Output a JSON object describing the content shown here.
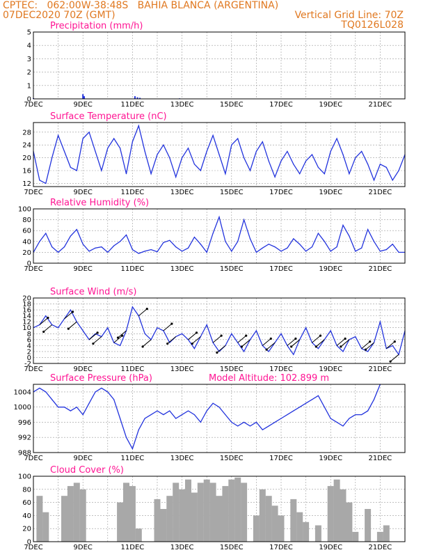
{
  "header": {
    "line1_left": "CPTEC:   062:00W-38:48S   BAHIA BLANCA (ARGENTINA)",
    "line2_left": "07DEC2020 70Z (GMT)",
    "line2_right": "Vertical Grid Line: 70Z",
    "line3_right": "TQ0126L028"
  },
  "x_tick_labels": [
    "7DEC",
    "9DEC",
    "11DEC",
    "13DEC",
    "15DEC",
    "17DEC",
    "19DEC",
    "21DEC"
  ],
  "colors": {
    "line": "#2233dd",
    "title": "#ff1493",
    "header": "#e07820",
    "bars": "#a8a8a8",
    "arrows": "#000000"
  },
  "chart_data": [
    {
      "type": "bar",
      "title": "Precipitation (mm/h)",
      "ylim": [
        0,
        5
      ],
      "yticks": [
        0,
        1,
        2,
        3,
        4,
        5
      ],
      "x_days": [
        0,
        2.0,
        2.05,
        4.1,
        4.2,
        4.3,
        5.9
      ],
      "values": [
        0.05,
        0.35,
        0.2,
        0.2,
        0.12,
        0.08,
        0.04
      ]
    },
    {
      "type": "line",
      "title": "Surface Temperature (nC)",
      "ylim": [
        11,
        31
      ],
      "yticks": [
        12,
        16,
        20,
        24,
        28
      ],
      "x_days": [
        0,
        0.25,
        0.5,
        0.75,
        1.0,
        1.25,
        1.5,
        1.75,
        2.0,
        2.25,
        2.5,
        2.75,
        3.0,
        3.25,
        3.5,
        3.75,
        4.0,
        4.25,
        4.5,
        4.75,
        5.0,
        5.25,
        5.5,
        5.75,
        6.0,
        6.25,
        6.5,
        6.75,
        7.0,
        7.25,
        7.5,
        7.75,
        8.0,
        8.25,
        8.5,
        8.75,
        9.0,
        9.25,
        9.5,
        9.75,
        10.0,
        10.25,
        10.5,
        10.75,
        11.0,
        11.25,
        11.5,
        11.75,
        12.0,
        12.25,
        12.5,
        12.75,
        13.0,
        13.25,
        13.5,
        13.75,
        14.0,
        14.25,
        14.5,
        14.75,
        15.0
      ],
      "values": [
        22,
        13,
        12,
        20,
        27,
        22,
        17,
        16,
        26,
        28,
        22,
        16,
        23,
        26,
        23,
        15,
        25,
        30,
        22,
        15,
        21,
        24,
        20,
        14,
        20,
        23,
        18,
        16,
        22,
        27,
        21,
        15,
        24,
        26,
        20,
        16,
        22,
        25,
        19,
        14,
        19,
        22,
        18,
        15,
        19,
        21,
        17,
        15,
        22,
        26,
        21,
        15,
        20,
        22,
        18,
        13,
        18,
        17,
        13,
        16,
        21
      ]
    },
    {
      "type": "line",
      "title": "Relative Humidity (%)",
      "ylim": [
        0,
        100
      ],
      "yticks": [
        0,
        20,
        40,
        60,
        80,
        100
      ],
      "x_days": [
        0,
        0.25,
        0.5,
        0.75,
        1.0,
        1.25,
        1.5,
        1.75,
        2.0,
        2.25,
        2.5,
        2.75,
        3.0,
        3.25,
        3.5,
        3.75,
        4.0,
        4.25,
        4.5,
        4.75,
        5.0,
        5.25,
        5.5,
        5.75,
        6.0,
        6.25,
        6.5,
        6.75,
        7.0,
        7.25,
        7.5,
        7.75,
        8.0,
        8.25,
        8.5,
        8.75,
        9.0,
        9.25,
        9.5,
        9.75,
        10.0,
        10.25,
        10.5,
        10.75,
        11.0,
        11.25,
        11.5,
        11.75,
        12.0,
        12.25,
        12.5,
        12.75,
        13.0,
        13.25,
        13.5,
        13.75,
        14.0,
        14.25,
        14.5,
        14.75,
        15.0
      ],
      "values": [
        20,
        40,
        55,
        30,
        20,
        30,
        50,
        62,
        35,
        22,
        28,
        30,
        20,
        32,
        40,
        52,
        25,
        18,
        22,
        25,
        21,
        38,
        42,
        30,
        22,
        28,
        48,
        35,
        20,
        55,
        85,
        40,
        22,
        40,
        80,
        45,
        20,
        28,
        35,
        30,
        22,
        28,
        45,
        35,
        22,
        30,
        55,
        40,
        22,
        30,
        70,
        50,
        22,
        28,
        62,
        40,
        22,
        25,
        35,
        20,
        20
      ]
    },
    {
      "type": "line",
      "title": "Surface Wind (m/s)",
      "ylim": [
        -2,
        20
      ],
      "yticks": [
        -2,
        0,
        2,
        4,
        6,
        8,
        10,
        12,
        14,
        16,
        18,
        20
      ],
      "x_days": [
        0,
        0.25,
        0.5,
        0.75,
        1.0,
        1.25,
        1.5,
        1.75,
        2.0,
        2.25,
        2.5,
        2.75,
        3.0,
        3.25,
        3.5,
        3.75,
        4.0,
        4.25,
        4.5,
        4.75,
        5.0,
        5.25,
        5.5,
        5.75,
        6.0,
        6.25,
        6.5,
        6.75,
        7.0,
        7.25,
        7.5,
        7.75,
        8.0,
        8.25,
        8.5,
        8.75,
        9.0,
        9.25,
        9.5,
        9.75,
        10.0,
        10.25,
        10.5,
        10.75,
        11.0,
        11.25,
        11.5,
        11.75,
        12.0,
        12.25,
        12.5,
        12.75,
        13.0,
        13.25,
        13.5,
        13.75,
        14.0,
        14.25,
        14.5,
        14.75,
        15.0
      ],
      "values": [
        10,
        11,
        14,
        11,
        10,
        13,
        16,
        12,
        9,
        6,
        8,
        7,
        10,
        5,
        4,
        9,
        17,
        14,
        8,
        6,
        10,
        9,
        5,
        7,
        8,
        6,
        3,
        7,
        11,
        5,
        2,
        4,
        8,
        5,
        2,
        6,
        9,
        4,
        2,
        5,
        8,
        4,
        1,
        6,
        10,
        5,
        3,
        6,
        9,
        4,
        2,
        6,
        7,
        3,
        2,
        5,
        12,
        3,
        4,
        1,
        9
      ]
    },
    {
      "type": "line",
      "title": "Surface Pressure (hPa)",
      "subtitle": "Model Altitude: 102.899 m",
      "ylim": [
        988,
        1006
      ],
      "yticks": [
        988,
        992,
        996,
        1000,
        1004
      ],
      "x_days": [
        0,
        0.25,
        0.5,
        0.75,
        1.0,
        1.25,
        1.5,
        1.75,
        2.0,
        2.25,
        2.5,
        2.75,
        3.0,
        3.25,
        3.5,
        3.75,
        4.0,
        4.25,
        4.5,
        4.75,
        5.0,
        5.25,
        5.5,
        5.75,
        6.0,
        6.25,
        6.5,
        6.75,
        7.0,
        7.25,
        7.5,
        7.75,
        8.0,
        8.25,
        8.5,
        8.75,
        9.0,
        9.25,
        9.5,
        9.75,
        10.0,
        10.25,
        10.5,
        10.75,
        11.0,
        11.25,
        11.5,
        11.75,
        12.0,
        12.25,
        12.5,
        12.75,
        13.0,
        13.25,
        13.5,
        13.75,
        14.0
      ],
      "values": [
        1004,
        1005,
        1004,
        1002,
        1000,
        1000,
        999,
        1000,
        998,
        1001,
        1004,
        1005,
        1004,
        1002,
        997,
        992,
        989,
        994,
        997,
        998,
        999,
        998,
        999,
        997,
        998,
        999,
        998,
        996,
        999,
        1001,
        1000,
        998,
        996,
        995,
        996,
        995,
        996,
        994,
        995,
        996,
        997,
        998,
        999,
        1000,
        1001,
        1002,
        1003,
        1000,
        997,
        996,
        995,
        997,
        998,
        998,
        999,
        1002,
        1006
      ]
    },
    {
      "type": "bar",
      "title": "Cloud Cover (%)",
      "ylim": [
        0,
        100
      ],
      "yticks": [
        0,
        20,
        40,
        60,
        80,
        100
      ],
      "x_days": [
        0.25,
        0.5,
        1.25,
        1.5,
        1.75,
        2.0,
        3.5,
        3.75,
        4.0,
        4.25,
        5.0,
        5.25,
        5.5,
        5.75,
        6.0,
        6.25,
        6.5,
        6.75,
        7.0,
        7.25,
        7.5,
        7.75,
        8.0,
        8.25,
        8.5,
        9.0,
        9.25,
        9.5,
        9.75,
        10.0,
        10.5,
        10.75,
        11.0,
        11.5,
        12.0,
        12.25,
        12.5,
        12.75,
        13.0,
        13.5,
        14.0,
        14.25
      ],
      "values": [
        70,
        45,
        70,
        85,
        90,
        80,
        60,
        90,
        85,
        20,
        65,
        50,
        70,
        90,
        80,
        95,
        75,
        90,
        95,
        90,
        70,
        85,
        95,
        98,
        90,
        40,
        80,
        70,
        55,
        40,
        65,
        45,
        30,
        25,
        85,
        95,
        80,
        60,
        15,
        50,
        15,
        25
      ]
    }
  ]
}
